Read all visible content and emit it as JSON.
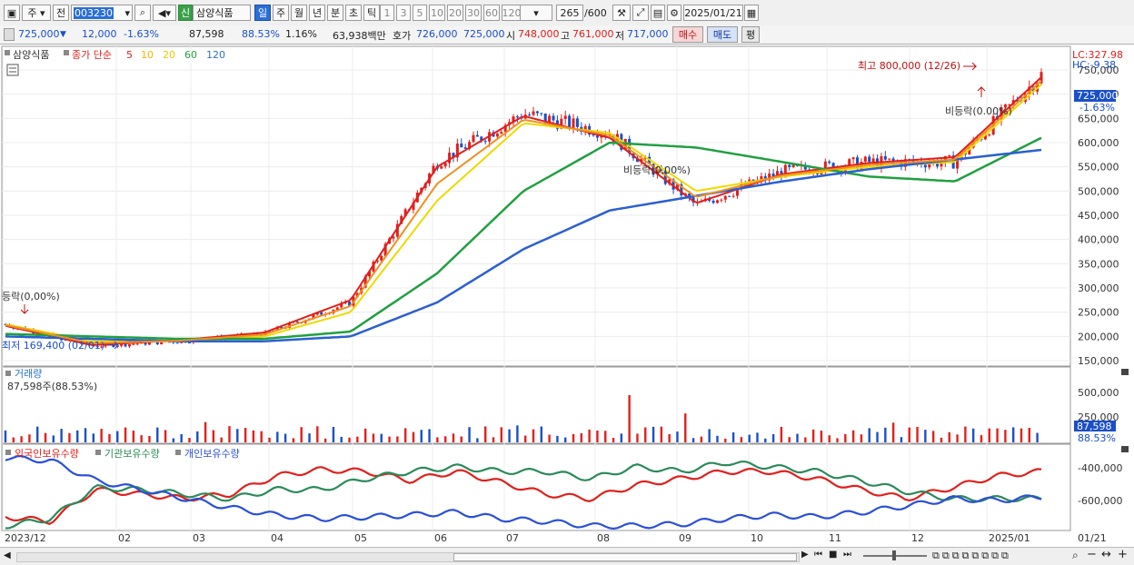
{
  "toolbar": {
    "type_label": "주",
    "prev_label": "전",
    "code": "003230",
    "new_badge": "신",
    "stock_name": "삼양식품",
    "periods": [
      "일",
      "주",
      "월",
      "년",
      "분",
      "초",
      "틱"
    ],
    "selected_period": "일",
    "intervals": [
      "1",
      "3",
      "5",
      "10",
      "20",
      "30",
      "60",
      "120"
    ],
    "count": "265",
    "count_total": "/600",
    "date": "2025/01/21"
  },
  "quote": {
    "price": "725,000",
    "change": "12,000",
    "change_pct": "-1.63%",
    "volume": "87,598",
    "volume_ratio": "88.53%",
    "turnover_pct": "1.16%",
    "amount": "63,938백만",
    "hoga_label": "호가",
    "ask": "726,000",
    "bid": "725,000",
    "open_label": "시",
    "open": "748,000",
    "high_label": "고",
    "high": "761,000",
    "low_label": "저",
    "low": "717,000",
    "buy_button": "매수",
    "sell_button": "매도",
    "eval_button": "평"
  },
  "legend": {
    "name": "삼양식품",
    "price_label": "종가 단순",
    "ma": [
      {
        "label": "5",
        "color": "#e0201c"
      },
      {
        "label": "10",
        "color": "#f5b800"
      },
      {
        "label": "20",
        "color": "#f0c800"
      },
      {
        "label": "60",
        "color": "#20a040"
      },
      {
        "label": "120",
        "color": "#2a6fd6"
      }
    ],
    "volume_title": "거래량",
    "volume_value": "87,598주(88.53%)",
    "holder_series": [
      {
        "label": "외국인보유수량",
        "color": "#e0201c"
      },
      {
        "label": "기관보유수량",
        "color": "#2a8a5a"
      },
      {
        "label": "개인보유수량",
        "color": "#2a50d6"
      }
    ]
  },
  "annotations": {
    "lc": "LC:327.98",
    "hc": "HC:-9.38",
    "high": "최고 800,000 (12/26)",
    "low": "최저 169,400 (02/01)",
    "drop1": "등락(0,00%)",
    "drop2": "비등락(0,00%)",
    "drop3": "비등락(0.00%)",
    "current_price": "725,000",
    "current_pct": "-1.63%",
    "current_volume": "87,598",
    "current_volume_pct": "88.53%"
  },
  "price_axis": [
    "750,000",
    "700,000",
    "650,000",
    "600,000",
    "550,000",
    "500,000",
    "450,000",
    "400,000",
    "350,000",
    "300,000",
    "250,000",
    "200,000",
    "150,000"
  ],
  "volume_axis": [
    "500,000",
    "250,000"
  ],
  "holder_axis": [
    "-400,000",
    "-600,000"
  ],
  "x_axis": [
    "2023/12",
    "02",
    "03",
    "04",
    "05",
    "06",
    "07",
    "08",
    "09",
    "10",
    "11",
    "12",
    "2025/01",
    "01/21"
  ],
  "chart_data": {
    "type": "line",
    "title": "",
    "x": [
      "2023/12",
      "02",
      "03",
      "04",
      "05",
      "06",
      "07",
      "08",
      "09",
      "10",
      "11",
      "12",
      "2025/01"
    ],
    "ylim": [
      150000,
      780000
    ],
    "series": [
      {
        "name": "종가",
        "values": [
          225000,
          180000,
          190000,
          205000,
          270000,
          560000,
          660000,
          620000,
          470000,
          540000,
          560000,
          560000,
          740000
        ]
      },
      {
        "name": "5",
        "values": [
          222000,
          182000,
          192000,
          208000,
          275000,
          550000,
          655000,
          610000,
          475000,
          535000,
          558000,
          570000,
          735000
        ]
      },
      {
        "name": "20",
        "values": [
          225000,
          190000,
          190000,
          200000,
          250000,
          480000,
          640000,
          620000,
          500000,
          530000,
          550000,
          560000,
          720000
        ]
      },
      {
        "name": "60",
        "values": [
          205000,
          200000,
          195000,
          195000,
          210000,
          330000,
          500000,
          600000,
          590000,
          560000,
          530000,
          520000,
          610000
        ]
      },
      {
        "name": "120",
        "values": [
          200000,
          195000,
          190000,
          190000,
          200000,
          270000,
          380000,
          460000,
          490000,
          520000,
          545000,
          565000,
          585000
        ]
      }
    ]
  }
}
